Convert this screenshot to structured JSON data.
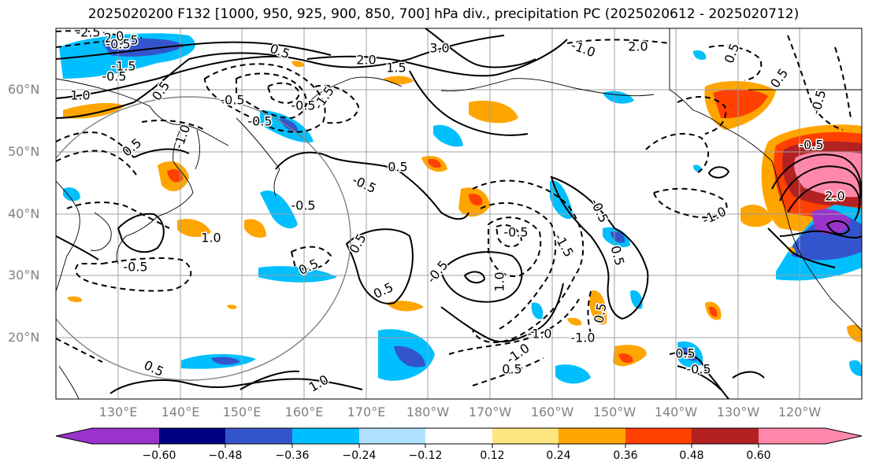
{
  "title": "2025020200 F132 [1000, 950, 925, 900, 850, 700] hPa div., precipitation PC (2025020612 - 2025020712)",
  "map": {
    "lat_labels": [
      "60°N",
      "50°N",
      "40°N",
      "30°N",
      "20°N"
    ],
    "lon_labels": [
      "130°E",
      "140°E",
      "150°E",
      "160°E",
      "170°E",
      "180°W",
      "170°W",
      "160°W",
      "150°W",
      "140°W",
      "130°W",
      "120°W"
    ],
    "contour_labels": [
      "-2.5",
      "-1.5",
      "2.0",
      "-0.5",
      "-1.5",
      "1.0",
      "-0.5",
      "0.5",
      "0.5",
      "2.0",
      "1.5",
      "3.0",
      "-1.0",
      "2.0",
      "-0.5",
      "-0.5",
      "-1.5",
      "-1.0",
      "0.5",
      "-0.5",
      "-0.5",
      "-0.5",
      "0.5",
      "1.0",
      "0.5",
      "-0.5",
      "0.5",
      "-0.5",
      "0.5",
      "1.0",
      "0.5",
      "1.0",
      "-0.5",
      "-1.5",
      "-1.0",
      "0.5",
      "-1.0",
      "-1.0",
      "-0.5",
      "0.5",
      "0.5",
      "0.5",
      "-0.5",
      "-1.0",
      "-0.5",
      "2.0",
      "0.5",
      "-0.5",
      "0.5"
    ]
  },
  "colorbar": {
    "ticks": [
      "−0.60",
      "−0.48",
      "−0.36",
      "−0.24",
      "−0.12",
      "0.12",
      "0.24",
      "0.36",
      "0.48",
      "0.60"
    ],
    "colors": [
      "#9933cc",
      "#000080",
      "#3355cc",
      "#00bfff",
      "#b0e2ff",
      "#ffffff",
      "#ffe680",
      "#ffa500",
      "#ff4000",
      "#b22222",
      "#ff88aa"
    ]
  }
}
